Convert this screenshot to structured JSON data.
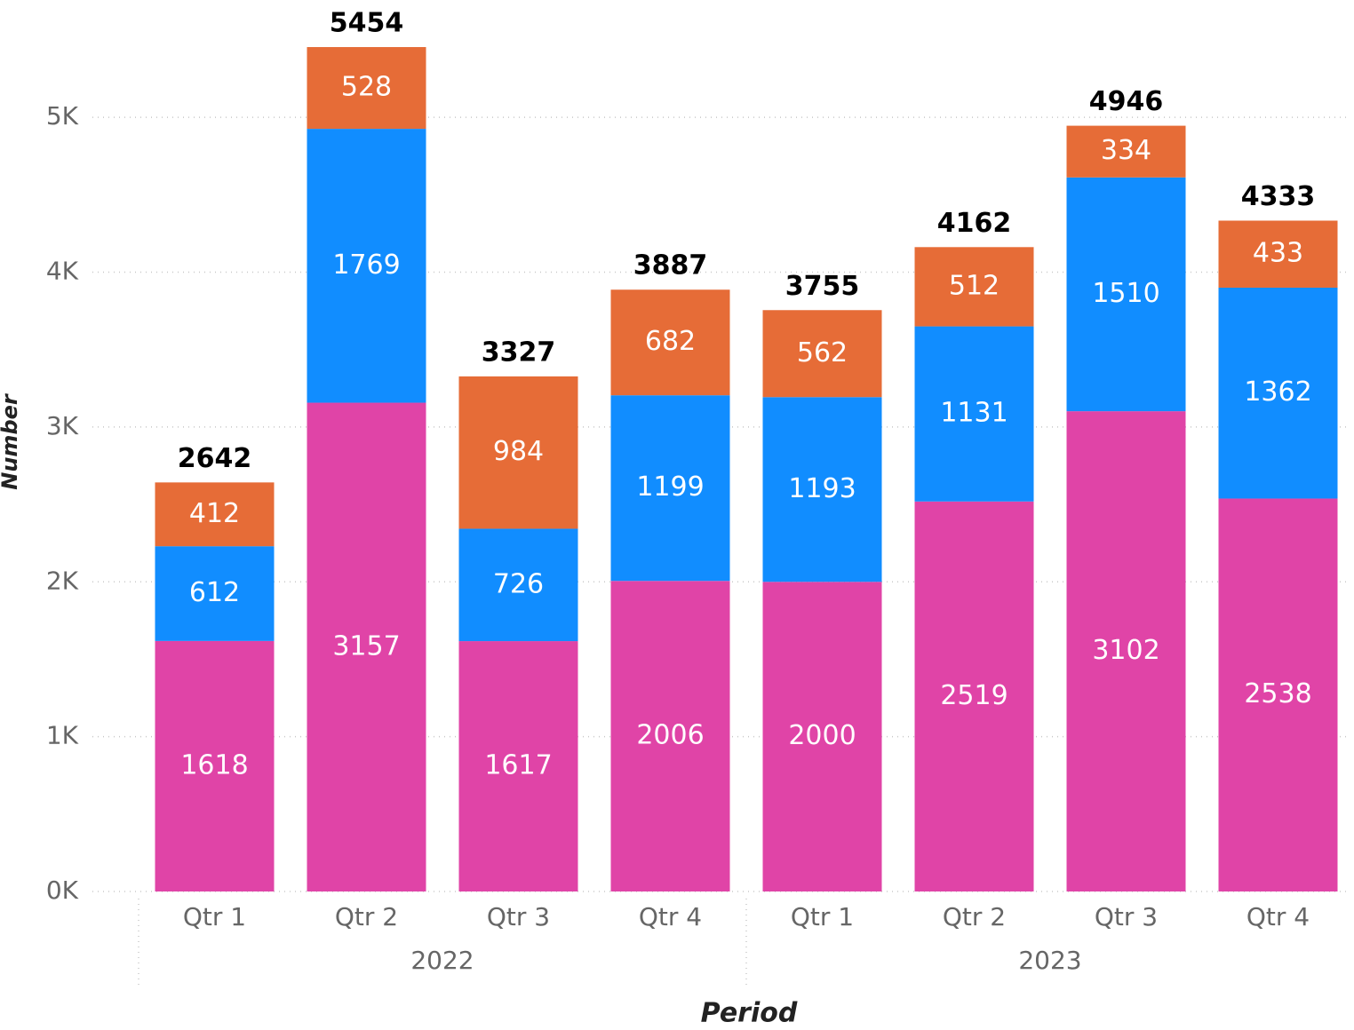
{
  "chart_data": {
    "type": "stacked_bar",
    "x_label": "Period",
    "y_label": "Number",
    "groups": [
      {
        "name": "2022",
        "categories": [
          "Qtr 1",
          "Qtr 2",
          "Qtr 3",
          "Qtr 4"
        ]
      },
      {
        "name": "2023",
        "categories": [
          "Qtr 1",
          "Qtr 2",
          "Qtr 3",
          "Qtr 4"
        ]
      }
    ],
    "series": [
      {
        "color": "#e044a7",
        "values": [
          1618,
          3157,
          1617,
          2006,
          2000,
          2519,
          3102,
          2538
        ]
      },
      {
        "color": "#118dff",
        "values": [
          612,
          1769,
          726,
          1199,
          1193,
          1131,
          1510,
          1362
        ]
      },
      {
        "color": "#e66c37",
        "values": [
          412,
          528,
          984,
          682,
          562,
          512,
          334,
          433
        ]
      }
    ],
    "totals": [
      2642,
      5454,
      3327,
      3887,
      3755,
      4162,
      4946,
      4333
    ],
    "ylim": [
      0,
      5500
    ],
    "yticks": [
      {
        "value": 0,
        "label": "0K"
      },
      {
        "value": 1000,
        "label": "1K"
      },
      {
        "value": 2000,
        "label": "2K"
      },
      {
        "value": 3000,
        "label": "3K"
      },
      {
        "value": 4000,
        "label": "4K"
      },
      {
        "value": 5000,
        "label": "5K"
      }
    ],
    "grid": true
  }
}
